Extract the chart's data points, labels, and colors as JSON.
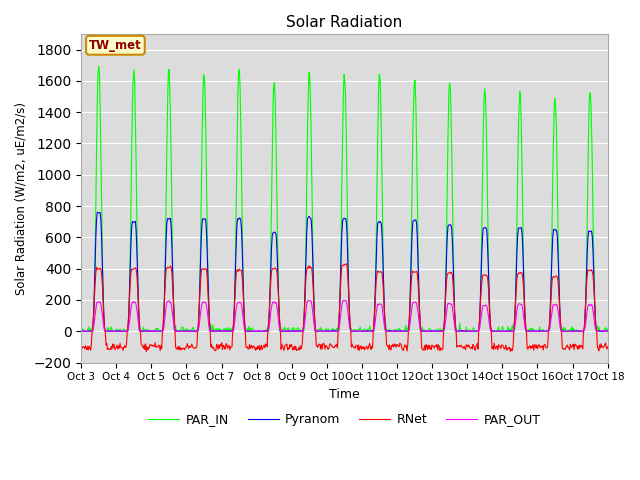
{
  "title": "Solar Radiation",
  "ylabel": "Solar Radiation (W/m2, uE/m2/s)",
  "xlabel": "Time",
  "ylim": [
    -200,
    1900
  ],
  "yticks": [
    -200,
    0,
    200,
    400,
    600,
    800,
    1000,
    1200,
    1400,
    1600,
    1800
  ],
  "num_days": 15,
  "start_day": 3,
  "colors": {
    "RNet": "#ff0000",
    "Pyranom": "#0000ff",
    "PAR_IN": "#00ff00",
    "PAR_OUT": "#ff00ff"
  },
  "legend_label": "TW_met",
  "background_color": "#dcdcdc",
  "fig_background": "#ffffff",
  "line_width": 0.8,
  "peaks": {
    "PAR_IN": [
      1720,
      1680,
      1670,
      1660,
      1670,
      1600,
      1660,
      1650,
      1640,
      1620,
      1600,
      1550,
      1540,
      1500,
      1550
    ],
    "Pyranom": [
      760,
      700,
      720,
      720,
      720,
      630,
      730,
      720,
      700,
      710,
      680,
      660,
      660,
      650,
      640
    ],
    "RNet": [
      400,
      400,
      410,
      400,
      390,
      400,
      410,
      430,
      380,
      380,
      370,
      360,
      370,
      350,
      390
    ],
    "PAR_OUT": [
      185,
      185,
      190,
      185,
      185,
      185,
      195,
      195,
      175,
      185,
      175,
      165,
      175,
      170,
      170
    ]
  },
  "rnet_night": -100,
  "xtick_labels": [
    "Oct 3",
    "Oct 4",
    "Oct 5",
    "Oct 6",
    "Oct 7 ",
    "Oct 8",
    "Oct 9",
    "Oct 10",
    "Oct 11",
    "Oct 12",
    "Oct 13",
    "Oct 14",
    "Oct 15",
    "Oct 16",
    "Oct 17",
    "Oct 18"
  ]
}
